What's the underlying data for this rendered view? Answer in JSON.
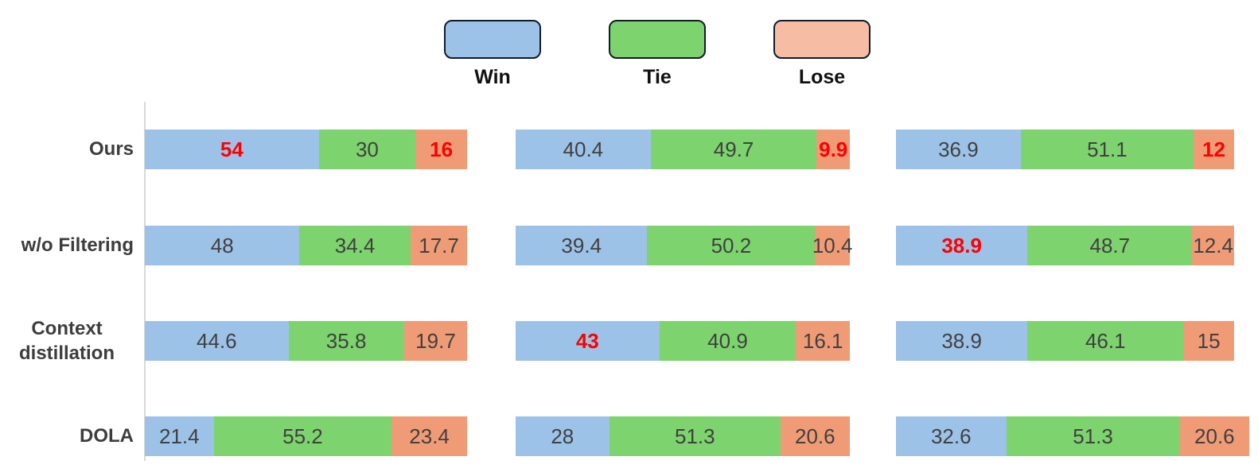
{
  "legend": {
    "items": [
      {
        "label": "Win",
        "fill": "#9cc3e7",
        "border": "#0f1c2b"
      },
      {
        "label": "Tie",
        "fill": "#7dd36d",
        "border": "#0f1c2b"
      },
      {
        "label": "Lose",
        "fill": "#f6bda4",
        "border": "#0f1c2b"
      }
    ]
  },
  "colors": {
    "win_bar": "#9cc3e7",
    "tie_bar": "#7dd36d",
    "lose_bar": "#ef9b76",
    "highlight_text": "#ff0000",
    "value_text": "#404040",
    "row_label_text": "#3d3d3d",
    "axis_line": "#d9d9d9"
  },
  "chart_data": {
    "type": "bar",
    "variant": "horizontal-stacked",
    "title": "",
    "series_names": [
      "Win",
      "Tie",
      "Lose"
    ],
    "row_labels": [
      "Ours",
      "w/o Filtering",
      "Context distillation",
      "DOLA"
    ],
    "axis": {
      "x_axis_visible": false,
      "y_axis_line_panel1_only": true,
      "value_range": [
        0,
        100
      ]
    },
    "legend_position": "top-center",
    "panels": [
      {
        "rows": [
          {
            "values": [
              54,
              30,
              16
            ],
            "display": [
              "54",
              "30",
              "16"
            ],
            "red": [
              true,
              false,
              true
            ]
          },
          {
            "values": [
              48,
              34.4,
              17.7
            ],
            "display": [
              "48",
              "34.4",
              "17.7"
            ],
            "red": [
              false,
              false,
              false
            ]
          },
          {
            "values": [
              44.6,
              35.8,
              19.7
            ],
            "display": [
              "44.6",
              "35.8",
              "19.7"
            ],
            "red": [
              false,
              false,
              false
            ]
          },
          {
            "values": [
              21.4,
              55.2,
              23.4
            ],
            "display": [
              "21.4",
              "55.2",
              "23.4"
            ],
            "red": [
              false,
              false,
              false
            ]
          }
        ]
      },
      {
        "rows": [
          {
            "values": [
              40.4,
              49.7,
              9.9
            ],
            "display": [
              "40.4",
              "49.7",
              "9.9"
            ],
            "red": [
              false,
              false,
              true
            ]
          },
          {
            "values": [
              39.4,
              50.2,
              10.4
            ],
            "display": [
              "39.4",
              "50.2",
              "10.4"
            ],
            "red": [
              false,
              false,
              false
            ]
          },
          {
            "values": [
              43,
              40.9,
              16.1
            ],
            "display": [
              "43",
              "40.9",
              "16.1"
            ],
            "red": [
              true,
              false,
              false
            ]
          },
          {
            "values": [
              28,
              51.3,
              20.6
            ],
            "display": [
              "28",
              "51.3",
              "20.6"
            ],
            "red": [
              false,
              false,
              false
            ]
          }
        ]
      },
      {
        "rows": [
          {
            "values": [
              36.9,
              51.1,
              12
            ],
            "display": [
              "36.9",
              "51.1",
              "12"
            ],
            "red": [
              false,
              false,
              true
            ]
          },
          {
            "values": [
              38.9,
              48.7,
              12.4
            ],
            "display": [
              "38.9",
              "48.7",
              "12.4"
            ],
            "red": [
              true,
              false,
              false
            ]
          },
          {
            "values": [
              38.9,
              46.1,
              15
            ],
            "display": [
              "38.9",
              "46.1",
              "15"
            ],
            "red": [
              false,
              false,
              false
            ]
          },
          {
            "values": [
              32.6,
              51.3,
              20.6
            ],
            "display": [
              "32.6",
              "51.3",
              "20.6"
            ],
            "red": [
              false,
              false,
              false
            ]
          }
        ]
      }
    ]
  }
}
